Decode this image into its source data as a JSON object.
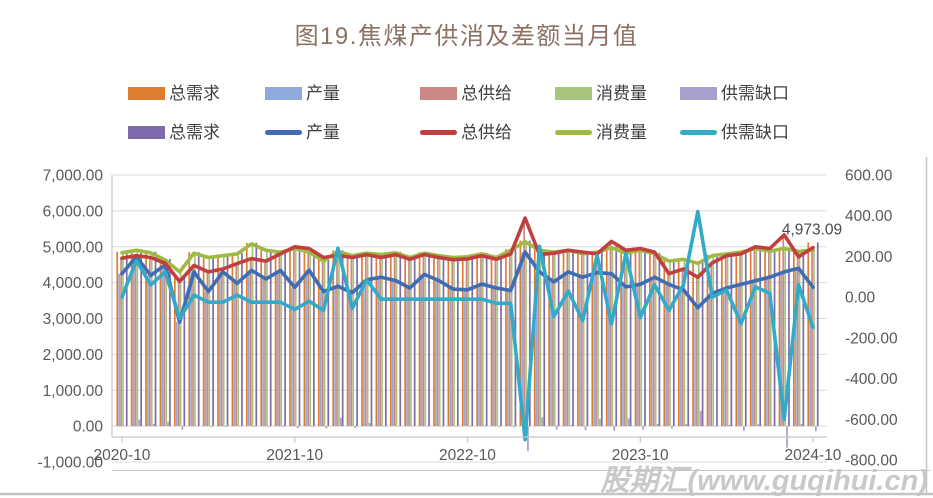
{
  "title": "图19.焦煤产供消及差额当月值",
  "watermark": "股期汇(www.guqihui.cn)",
  "colors": {
    "bar_orange": "#DF7D2F",
    "bar_lightblue": "#8FAADC",
    "bar_pink": "#CD8786",
    "bar_lightgreen": "#A8C57E",
    "bar_lavender": "#A89FCC",
    "bar_darkpurple": "#7E6BAB",
    "line_blue": "#3F6CB3",
    "line_red": "#BF403F",
    "line_green": "#9FBA42",
    "line_cyan": "#33AAC8",
    "title_text": "#8C7164",
    "axis_text": "#595959",
    "legend_text": "#3F3F3F",
    "grid": "#DCDCDC",
    "axis_line": "#C6C6C6",
    "border": "#C4C4C4",
    "watermark_text": "#C9C9C9",
    "annotation_text": "#4A4A4A"
  },
  "legend": {
    "rows": [
      {
        "items": [
          {
            "label": "总需求",
            "swatch": "bar",
            "color": "#DF7D2F"
          },
          {
            "label": "产量",
            "swatch": "bar",
            "color": "#8FAADC"
          },
          {
            "label": "总供给",
            "swatch": "bar",
            "color": "#CD8786"
          },
          {
            "label": "消费量",
            "swatch": "bar",
            "color": "#A8C57E"
          },
          {
            "label": "供需缺口",
            "swatch": "bar",
            "color": "#A89FCC"
          }
        ]
      },
      {
        "items": [
          {
            "label": "总需求",
            "swatch": "bar",
            "color": "#7E6BAB"
          },
          {
            "label": "产量",
            "swatch": "line",
            "color": "#3F6CB3"
          },
          {
            "label": "总供给",
            "swatch": "line",
            "color": "#BF403F"
          },
          {
            "label": "消费量",
            "swatch": "line",
            "color": "#9FBA42"
          },
          {
            "label": "供需缺口",
            "swatch": "line",
            "color": "#33AAC8"
          }
        ]
      }
    ]
  },
  "chart_data": {
    "type": "combo-bar-line",
    "x_months": [
      "2020-10",
      "2020-11",
      "2020-12",
      "2021-01",
      "2021-02",
      "2021-03",
      "2021-04",
      "2021-05",
      "2021-06",
      "2021-07",
      "2021-08",
      "2021-09",
      "2021-10",
      "2021-11",
      "2021-12",
      "2022-01",
      "2022-02",
      "2022-03",
      "2022-04",
      "2022-05",
      "2022-06",
      "2022-07",
      "2022-08",
      "2022-09",
      "2022-10",
      "2022-11",
      "2022-12",
      "2023-01",
      "2023-02",
      "2023-03",
      "2023-04",
      "2023-05",
      "2023-06",
      "2023-07",
      "2023-08",
      "2023-09",
      "2023-10",
      "2023-11",
      "2023-12",
      "2024-01",
      "2024-02",
      "2024-03",
      "2024-04",
      "2024-05",
      "2024-06",
      "2024-07",
      "2024-08",
      "2024-09",
      "2024-10"
    ],
    "x_tick_labels": [
      "2020-10",
      "2021-10",
      "2022-10",
      "2023-10",
      "2024-10"
    ],
    "x_tick_indices": [
      0,
      12,
      24,
      36,
      48
    ],
    "left_axis": {
      "min": -1000,
      "max": 7000,
      "step": 1000,
      "labels": [
        "7,000.00",
        "6,000.00",
        "5,000.00",
        "4,000.00",
        "3,000.00",
        "2,000.00",
        "1,000.00",
        "0.00",
        "-1,000.00"
      ]
    },
    "right_axis": {
      "min": -800,
      "max": 600,
      "step": 200,
      "labels": [
        "600.00",
        "400.00",
        "200.00",
        "0.00",
        "-200.00",
        "-400.00",
        "-600.00",
        "-800.00"
      ]
    },
    "values": {
      "demand": [
        4860,
        4930,
        4860,
        4660,
        4150,
        4850,
        4730,
        4780,
        4830,
        5110,
        4930,
        4880,
        4980,
        4880,
        4630,
        4900,
        4780,
        4850,
        4810,
        4860,
        4730,
        4850,
        4780,
        4730,
        4750,
        4830,
        4730,
        4930,
        5170,
        4930,
        4880,
        4930,
        4830,
        4880,
        5010,
        4850,
        4930,
        4830,
        4630,
        4680,
        4570,
        4780,
        4830,
        4880,
        4980,
        4910,
        4980,
        4900,
        5120
      ],
      "production": [
        4250,
        4720,
        4200,
        4500,
        2900,
        4300,
        3750,
        4300,
        3980,
        4340,
        4100,
        4340,
        3870,
        4350,
        3750,
        3900,
        3720,
        4080,
        4150,
        4060,
        3850,
        4230,
        4060,
        3820,
        3800,
        3960,
        3850,
        3780,
        4850,
        4300,
        4020,
        4300,
        4150,
        4280,
        4250,
        3880,
        3950,
        4150,
        3950,
        3800,
        3300,
        3700,
        3850,
        3950,
        4050,
        4150,
        4300,
        4400,
        3870
      ],
      "supply": [
        4680,
        4750,
        4700,
        4540,
        4030,
        4480,
        4300,
        4380,
        4530,
        4670,
        4600,
        4800,
        5000,
        4950,
        4700,
        4760,
        4700,
        4780,
        4700,
        4780,
        4650,
        4780,
        4700,
        4640,
        4660,
        4750,
        4650,
        4800,
        5800,
        4780,
        4820,
        4900,
        4850,
        4800,
        5150,
        4900,
        4950,
        4850,
        4250,
        4380,
        4150,
        4550,
        4750,
        4800,
        5000,
        4950,
        5330,
        4720,
        4973.09
      ],
      "consumption": [
        4830,
        4900,
        4830,
        4630,
        4300,
        4820,
        4700,
        4750,
        4800,
        5080,
        4900,
        4850,
        4950,
        4850,
        4600,
        4870,
        4750,
        4820,
        4780,
        4830,
        4700,
        4820,
        4750,
        4700,
        4720,
        4800,
        4700,
        4900,
        5140,
        4900,
        4850,
        4900,
        4800,
        4850,
        4980,
        4820,
        4900,
        4800,
        4600,
        4650,
        4540,
        4750,
        4800,
        4850,
        4950,
        4880,
        4950,
        4870,
        4910
      ],
      "gap": [
        0,
        180,
        60,
        125,
        -105,
        10,
        -25,
        -25,
        10,
        -25,
        -25,
        -25,
        -60,
        -20,
        -65,
        240,
        -55,
        85,
        -10,
        -10,
        -10,
        -10,
        -10,
        -10,
        -10,
        -10,
        -30,
        -30,
        -700,
        250,
        -95,
        30,
        -115,
        205,
        -130,
        215,
        -100,
        60,
        -65,
        60,
        420,
        0,
        35,
        -130,
        50,
        20,
        -600,
        60,
        -148
      ]
    },
    "bar_series": [
      {
        "name": "总需求",
        "color": "#DF7D2F",
        "values_key": "demand",
        "axis": "left"
      },
      {
        "name": "产量",
        "color": "#8FAADC",
        "values_key": "production",
        "axis": "left"
      },
      {
        "name": "总供给",
        "color": "#CD8786",
        "values_key": "supply",
        "axis": "left"
      },
      {
        "name": "消费量",
        "color": "#A8C57E",
        "values_key": "consumption",
        "axis": "left"
      },
      {
        "name": "供需缺口",
        "color": "#A89FCC",
        "values_key": "gap",
        "axis": "left"
      },
      {
        "name": "总需求",
        "color": "#7E6BAB",
        "values_key": "demand",
        "axis": "left"
      }
    ],
    "line_series": [
      {
        "name": "产量",
        "color": "#3F6CB3",
        "values_key": "production",
        "axis": "left"
      },
      {
        "name": "消费量",
        "color": "#9FBA42",
        "values_key": "consumption",
        "axis": "left"
      },
      {
        "name": "总供给",
        "color": "#BF403F",
        "values_key": "supply",
        "axis": "left"
      },
      {
        "name": "供需缺口",
        "color": "#33AAC8",
        "values_key": "gap",
        "axis": "right"
      }
    ],
    "annotation": {
      "text": "4,973.09",
      "series_key": "supply",
      "index": 48
    }
  }
}
